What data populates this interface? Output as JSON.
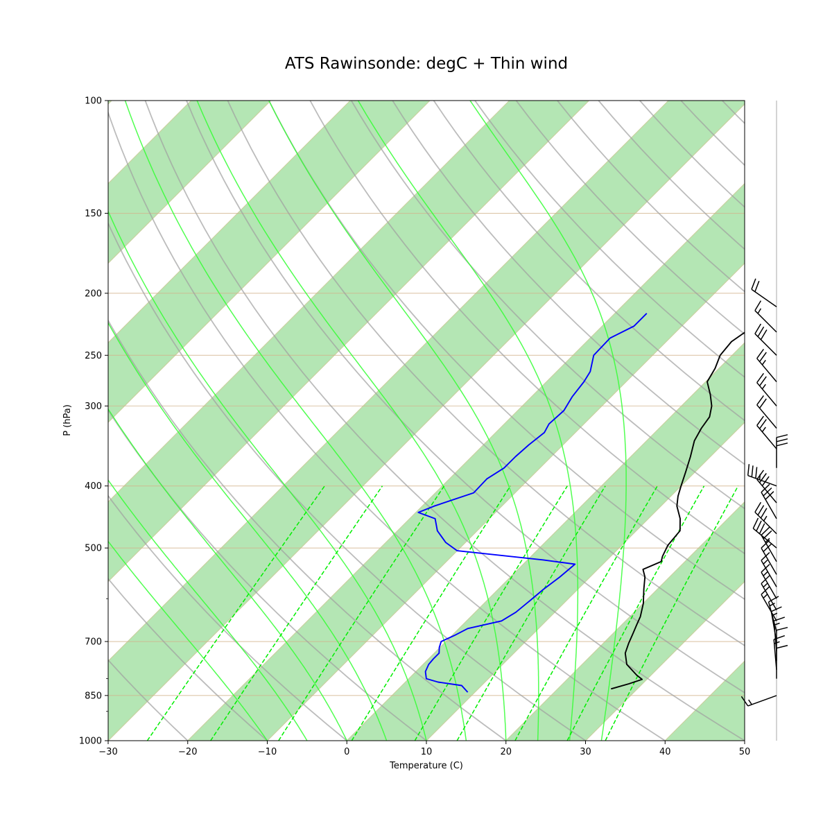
{
  "chart_data": {
    "type": "line",
    "title": "ATS Rawinsonde: degC + Thin wind",
    "xlabel": "Temperature (C)",
    "ylabel": "P (hPa)",
    "xlim": [
      -30,
      50
    ],
    "ylim": [
      1000,
      100
    ],
    "y_scale": "log",
    "x_ticks": [
      "−30",
      "−20",
      "−10",
      "0",
      "10",
      "20",
      "30",
      "40",
      "50"
    ],
    "y_ticks": [
      100,
      150,
      200,
      250,
      300,
      400,
      500,
      700,
      850,
      1000
    ],
    "colors": {
      "temperature": "#000000",
      "dewpoint": "#0000ff",
      "isotherm_band": "#b4e6b4",
      "isobar": "#d2b48c",
      "dry_adiabat": "#a0a0a0",
      "moist_adiabat": "#33ff33",
      "mixing_ratio": "#00ee00",
      "barb": "#000000"
    },
    "temperature": {
      "p": [
        830,
        815,
        802,
        790,
        760,
        730,
        705,
        680,
        660,
        640,
        610,
        580,
        555,
        540,
        525,
        515,
        495,
        470,
        450,
        430,
        415,
        400,
        380,
        360,
        340,
        325,
        312,
        300,
        288,
        275,
        262,
        250,
        238,
        226,
        214
      ],
      "t": [
        26.7,
        28.3,
        29.4,
        28.2,
        25.6,
        24.0,
        23.2,
        22.5,
        21.9,
        21.3,
        20.0,
        18.3,
        16.9,
        15.7,
        17.0,
        16.5,
        15.8,
        15.5,
        14.0,
        12.0,
        10.9,
        10.0,
        8.8,
        7.5,
        6.0,
        5.3,
        4.9,
        3.8,
        2.2,
        0.2,
        -0.5,
        -1.5,
        -1.8,
        -1.0,
        -1.5
      ]
    },
    "dewpoint": {
      "p": [
        840,
        820,
        810,
        800,
        780,
        760,
        745,
        730,
        715,
        700,
        685,
        668,
        650,
        630,
        605,
        580,
        555,
        530,
        522,
        505,
        490,
        470,
        450,
        440,
        430,
        410,
        390,
        375,
        360,
        345,
        330,
        320,
        305,
        290,
        275,
        265,
        250,
        235,
        225,
        215
      ],
      "t": [
        9.1,
        7.5,
        4.1,
        2.2,
        1.2,
        0.7,
        0.6,
        0.6,
        -0.1,
        -0.6,
        0.3,
        1.1,
        4.4,
        5.1,
        5.4,
        5.7,
        6.2,
        6.5,
        2.0,
        -10.0,
        -12.5,
        -15.0,
        -16.8,
        -19.7,
        -18.5,
        -15.2,
        -15.3,
        -14.5,
        -14.5,
        -14.3,
        -13.9,
        -14.4,
        -14.2,
        -14.9,
        -15.3,
        -15.8,
        -17.4,
        -17.5,
        -16.0,
        -16.0
      ]
    },
    "wind_barbs": {
      "p": [
        850,
        800,
        775,
        750,
        725,
        700,
        675,
        650,
        625,
        600,
        575,
        550,
        525,
        500,
        475,
        450,
        425,
        400,
        375,
        350,
        325,
        300,
        275,
        250,
        230,
        210
      ],
      "speed_kt": [
        15,
        10,
        15,
        10,
        15,
        15,
        15,
        15,
        15,
        15,
        15,
        20,
        25,
        30,
        35,
        30,
        30,
        35,
        30,
        25,
        20,
        25,
        25,
        30,
        15,
        20
      ],
      "direction_deg": [
        250,
        0,
        355,
        0,
        355,
        350,
        345,
        330,
        330,
        330,
        330,
        330,
        330,
        310,
        315,
        330,
        320,
        290,
        0,
        320,
        320,
        320,
        320,
        315,
        315,
        305
      ]
    }
  }
}
